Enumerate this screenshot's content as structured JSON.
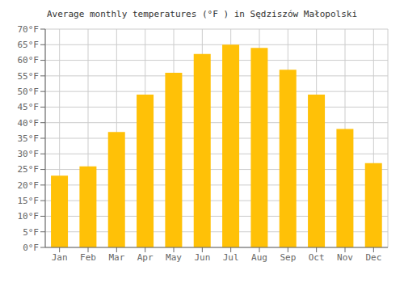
{
  "chart_data": {
    "type": "bar",
    "title": "Average monthly temperatures (°F ) in Sędziszów Małopolski",
    "categories": [
      "Jan",
      "Feb",
      "Mar",
      "Apr",
      "May",
      "Jun",
      "Jul",
      "Aug",
      "Sep",
      "Oct",
      "Nov",
      "Dec"
    ],
    "values": [
      23,
      26,
      37,
      49,
      56,
      62,
      65,
      64,
      57,
      49,
      38,
      27
    ],
    "color": "#FFC107",
    "ylim": [
      0,
      70
    ],
    "yticks": [
      {
        "value": 0,
        "label": "0°F"
      },
      {
        "value": 5,
        "label": "5°F"
      },
      {
        "value": 10,
        "label": "10°F"
      },
      {
        "value": 15,
        "label": "15°F"
      },
      {
        "value": 20,
        "label": "20°F"
      },
      {
        "value": 25,
        "label": "25°F"
      },
      {
        "value": 30,
        "label": "30°F"
      },
      {
        "value": 35,
        "label": "35°F"
      },
      {
        "value": 40,
        "label": "40°F"
      },
      {
        "value": 45,
        "label": "45°F"
      },
      {
        "value": 50,
        "label": "50°F"
      },
      {
        "value": 55,
        "label": "55°F"
      },
      {
        "value": 60,
        "label": "60°F"
      },
      {
        "value": 65,
        "label": "65°F"
      },
      {
        "value": 70,
        "label": "70°F"
      }
    ],
    "grid": true
  }
}
